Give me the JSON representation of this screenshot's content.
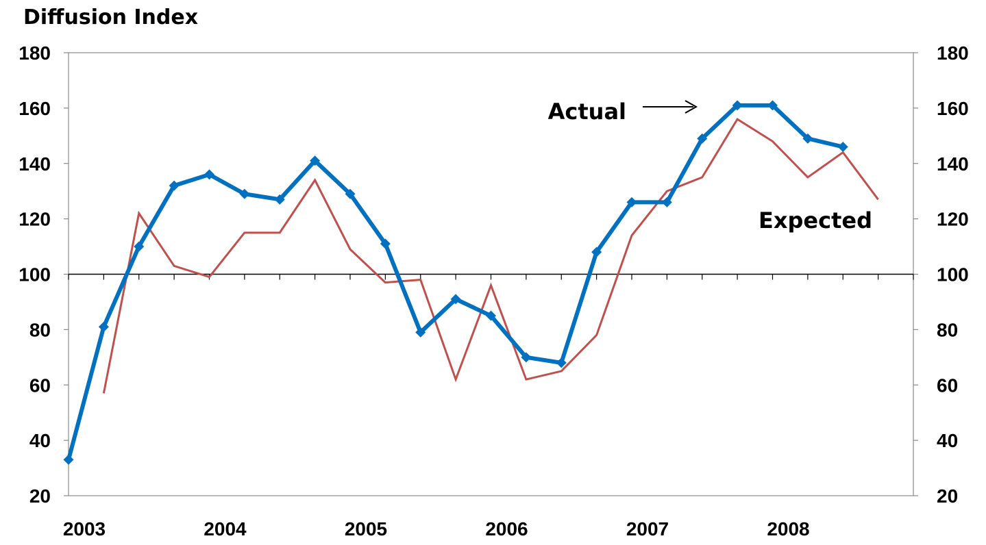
{
  "chart_data": {
    "type": "line",
    "title": "Diffusion Index",
    "xlabel": "",
    "ylabel": "",
    "ylim": [
      20,
      180
    ],
    "yticks": [
      20,
      40,
      60,
      80,
      100,
      120,
      140,
      160,
      180
    ],
    "ytick_labels": [
      "20",
      "40",
      "60",
      "80",
      "100",
      "120",
      "140",
      "160",
      "180"
    ],
    "secondary_y_axis": true,
    "xlim": [
      2003,
      2009
    ],
    "xtick_labels": [
      "2003",
      "2004",
      "2005",
      "2006",
      "2007",
      "2008"
    ],
    "reference_line": 100,
    "grid": false,
    "legend": "none",
    "annotations": [
      {
        "text": "Actual",
        "arrow": true,
        "series": "Actual"
      },
      {
        "text": "Expected",
        "series": "Expected"
      }
    ],
    "series": [
      {
        "name": "Actual",
        "color": "#0070C0",
        "markers": "diamond",
        "x": [
          2003.0,
          2003.25,
          2003.5,
          2003.75,
          2004.0,
          2004.25,
          2004.5,
          2004.75,
          2005.0,
          2005.25,
          2005.5,
          2005.75,
          2006.0,
          2006.25,
          2006.5,
          2006.75,
          2007.0,
          2007.25,
          2007.5,
          2007.75,
          2008.0,
          2008.25,
          2008.5
        ],
        "values": [
          33,
          81,
          110,
          132,
          136,
          129,
          127,
          141,
          129,
          111,
          79,
          91,
          85,
          70,
          68,
          108,
          126,
          126,
          149,
          161,
          161,
          149,
          146
        ]
      },
      {
        "name": "Expected",
        "color": "#C0504D",
        "markers": "none",
        "x": [
          2003.25,
          2003.5,
          2003.75,
          2004.0,
          2004.25,
          2004.5,
          2004.75,
          2005.0,
          2005.25,
          2005.5,
          2005.75,
          2006.0,
          2006.25,
          2006.5,
          2006.75,
          2007.0,
          2007.25,
          2007.5,
          2007.75,
          2008.0,
          2008.25,
          2008.5,
          2008.75
        ],
        "values": [
          57,
          122,
          103,
          99,
          115,
          115,
          134,
          109,
          97,
          98,
          62,
          96,
          62,
          65,
          78,
          114,
          130,
          135,
          156,
          148,
          135,
          144,
          127
        ]
      }
    ]
  }
}
